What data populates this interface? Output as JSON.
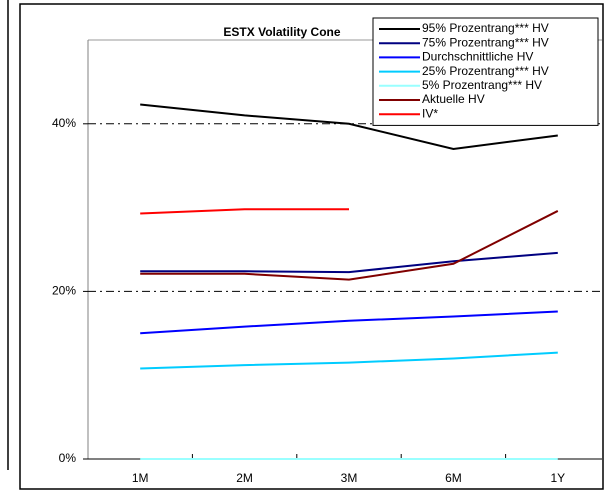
{
  "chart_data": {
    "type": "line",
    "title": "ESTX Volatility Cone",
    "categories": [
      "1M",
      "2M",
      "3M",
      "6M",
      "1Y"
    ],
    "series": [
      {
        "name": "95% Prozentrang*** HV",
        "color": "#000000",
        "values": [
          42.3,
          41.0,
          40.0,
          37.0,
          38.6
        ]
      },
      {
        "name": "75% Prozentrang*** HV",
        "color": "#000080",
        "values": [
          22.4,
          22.4,
          22.3,
          23.6,
          24.6
        ]
      },
      {
        "name": "Durchschnittliche HV",
        "color": "#0000ff",
        "values": [
          15.0,
          15.8,
          16.5,
          17.0,
          17.6
        ]
      },
      {
        "name": "25% Prozentrang*** HV",
        "color": "#00ccff",
        "values": [
          10.8,
          11.2,
          11.5,
          12.0,
          12.7
        ]
      },
      {
        "name": "5% Prozentrang*** HV",
        "color": "#99ffff",
        "values": [
          0,
          0,
          0,
          0,
          0
        ]
      },
      {
        "name": "Aktuelle HV",
        "color": "#800000",
        "values": [
          22.1,
          22.1,
          21.4,
          23.3,
          29.6
        ]
      },
      {
        "name": "IV*",
        "color": "#ff0000",
        "values": [
          29.3,
          29.8,
          29.8,
          null,
          null
        ]
      }
    ],
    "ylim": [
      0,
      50
    ],
    "yticks": [
      {
        "value": 0,
        "label": "0%"
      },
      {
        "value": 20,
        "label": "20%"
      },
      {
        "value": 40,
        "label": "40%"
      }
    ],
    "grid": true,
    "legend": "top-right"
  }
}
